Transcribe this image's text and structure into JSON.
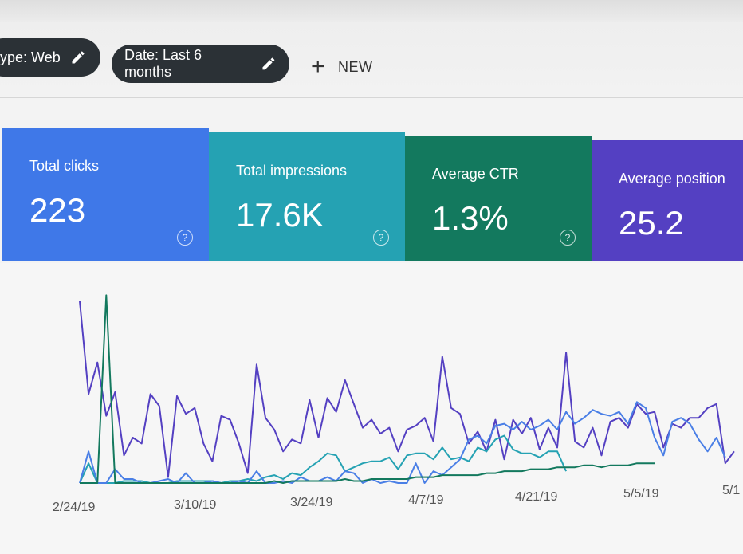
{
  "filters": {
    "type_chip": "ype: Web",
    "date_chip": "Date: Last 6 months",
    "new_label": "NEW"
  },
  "cards": {
    "clicks": {
      "label": "Total clicks",
      "value": "223",
      "color": "#3f78e8"
    },
    "impressions": {
      "label": "Total impressions",
      "value": "17.6K",
      "color": "#25a2b3"
    },
    "ctr": {
      "label": "Average CTR",
      "value": "1.3%",
      "color": "#13795e"
    },
    "position": {
      "label": "Average position",
      "value": "25.2",
      "color": "#5440c2"
    }
  },
  "icons": {
    "edit": "pencil-icon",
    "add": "plus-icon",
    "help": "help-circle-icon"
  },
  "chart_data": {
    "type": "line",
    "x_tick_labels": [
      "2/24/19",
      "3/10/19",
      "3/24/19",
      "4/7/19",
      "4/21/19",
      "5/5/19",
      "5/1"
    ],
    "grid": false,
    "series": [
      {
        "color": "#5440c2",
        "values": [
          92,
          45,
          61,
          34,
          46,
          14,
          23,
          20,
          45,
          39,
          3,
          44,
          35,
          38,
          20,
          11,
          34,
          32,
          20,
          5,
          60,
          33,
          27,
          16,
          22,
          20,
          42,
          23,
          43,
          36,
          52,
          40,
          28,
          32,
          25,
          28,
          16,
          27,
          29,
          33,
          21,
          64,
          38,
          35,
          20,
          26,
          16,
          32,
          12,
          32,
          25,
          33,
          17,
          28,
          18,
          66,
          21,
          18,
          28,
          14,
          31,
          33,
          28,
          40,
          35,
          36,
          18,
          30,
          28,
          33,
          33,
          38,
          40,
          10,
          16
        ]
      },
      {
        "color": "#25a2b3",
        "values": [
          0,
          10,
          0,
          0,
          0,
          1,
          1,
          1,
          0,
          0,
          0,
          1,
          1,
          1,
          1,
          1,
          0,
          1,
          1,
          2,
          1,
          3,
          4,
          2,
          5,
          4,
          8,
          11,
          15,
          14,
          6,
          8,
          10,
          11,
          11,
          13,
          7,
          14,
          15,
          15,
          12,
          18,
          12,
          13,
          11,
          18,
          16,
          22,
          24,
          17,
          15,
          15,
          13,
          16,
          16,
          6
        ]
      },
      {
        "color": "#4a7fe6",
        "values": [
          0,
          16,
          0,
          0,
          7,
          2,
          2,
          0,
          0,
          1,
          2,
          0,
          5,
          0,
          0,
          1,
          0,
          0,
          1,
          0,
          6,
          0,
          0,
          1,
          0,
          3,
          1,
          1,
          3,
          1,
          6,
          5,
          0,
          2,
          0,
          1,
          0,
          0,
          10,
          0,
          6,
          4,
          8,
          12,
          22,
          24,
          20,
          29,
          30,
          27,
          31,
          27,
          29,
          32,
          27,
          36,
          30,
          33,
          37,
          35,
          34,
          36,
          30,
          41,
          38,
          23,
          14,
          31,
          33,
          30,
          22,
          16,
          23,
          13
        ]
      },
      {
        "color": "#13795e",
        "values": [
          0,
          0,
          0,
          95,
          0,
          0,
          0,
          0,
          0,
          0,
          0,
          0,
          0,
          0,
          0,
          0,
          0,
          0,
          0,
          0,
          0,
          0,
          1,
          0,
          1,
          1,
          1,
          1,
          1,
          1,
          2,
          1,
          1,
          2,
          2,
          2,
          2,
          2,
          3,
          3,
          3,
          4,
          4,
          4,
          4,
          4,
          5,
          5,
          6,
          6,
          6,
          7,
          7,
          7,
          8,
          8,
          8,
          9,
          9,
          8,
          9,
          9,
          9,
          10,
          10,
          10
        ]
      }
    ]
  }
}
